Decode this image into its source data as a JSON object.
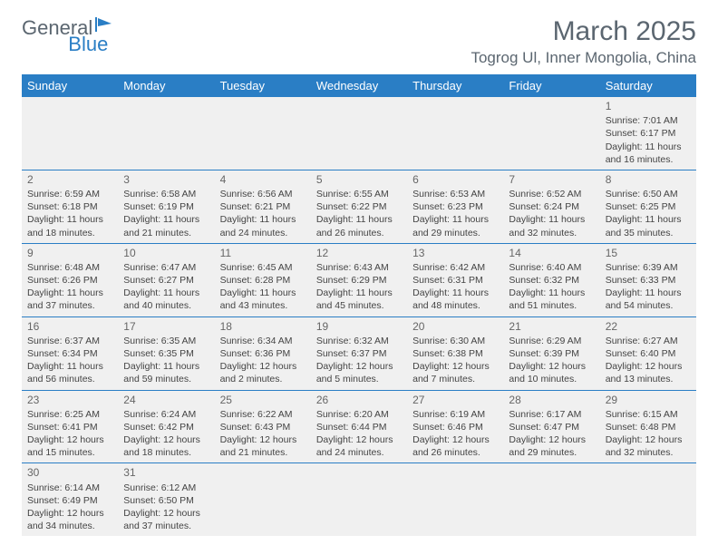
{
  "logo": {
    "text1": "General",
    "text2": "Blue"
  },
  "title": "March 2025",
  "location": "Togrog Ul, Inner Mongolia, China",
  "colors": {
    "header_bg": "#2a7ec5",
    "text": "#5b6670",
    "cell_bg": "#f0f0f0",
    "border": "#2a7ec5"
  },
  "dayNames": [
    "Sunday",
    "Monday",
    "Tuesday",
    "Wednesday",
    "Thursday",
    "Friday",
    "Saturday"
  ],
  "weeks": [
    [
      null,
      null,
      null,
      null,
      null,
      null,
      {
        "n": "1",
        "sr": "Sunrise: 7:01 AM",
        "ss": "Sunset: 6:17 PM",
        "dl": "Daylight: 11 hours and 16 minutes."
      }
    ],
    [
      {
        "n": "2",
        "sr": "Sunrise: 6:59 AM",
        "ss": "Sunset: 6:18 PM",
        "dl": "Daylight: 11 hours and 18 minutes."
      },
      {
        "n": "3",
        "sr": "Sunrise: 6:58 AM",
        "ss": "Sunset: 6:19 PM",
        "dl": "Daylight: 11 hours and 21 minutes."
      },
      {
        "n": "4",
        "sr": "Sunrise: 6:56 AM",
        "ss": "Sunset: 6:21 PM",
        "dl": "Daylight: 11 hours and 24 minutes."
      },
      {
        "n": "5",
        "sr": "Sunrise: 6:55 AM",
        "ss": "Sunset: 6:22 PM",
        "dl": "Daylight: 11 hours and 26 minutes."
      },
      {
        "n": "6",
        "sr": "Sunrise: 6:53 AM",
        "ss": "Sunset: 6:23 PM",
        "dl": "Daylight: 11 hours and 29 minutes."
      },
      {
        "n": "7",
        "sr": "Sunrise: 6:52 AM",
        "ss": "Sunset: 6:24 PM",
        "dl": "Daylight: 11 hours and 32 minutes."
      },
      {
        "n": "8",
        "sr": "Sunrise: 6:50 AM",
        "ss": "Sunset: 6:25 PM",
        "dl": "Daylight: 11 hours and 35 minutes."
      }
    ],
    [
      {
        "n": "9",
        "sr": "Sunrise: 6:48 AM",
        "ss": "Sunset: 6:26 PM",
        "dl": "Daylight: 11 hours and 37 minutes."
      },
      {
        "n": "10",
        "sr": "Sunrise: 6:47 AM",
        "ss": "Sunset: 6:27 PM",
        "dl": "Daylight: 11 hours and 40 minutes."
      },
      {
        "n": "11",
        "sr": "Sunrise: 6:45 AM",
        "ss": "Sunset: 6:28 PM",
        "dl": "Daylight: 11 hours and 43 minutes."
      },
      {
        "n": "12",
        "sr": "Sunrise: 6:43 AM",
        "ss": "Sunset: 6:29 PM",
        "dl": "Daylight: 11 hours and 45 minutes."
      },
      {
        "n": "13",
        "sr": "Sunrise: 6:42 AM",
        "ss": "Sunset: 6:31 PM",
        "dl": "Daylight: 11 hours and 48 minutes."
      },
      {
        "n": "14",
        "sr": "Sunrise: 6:40 AM",
        "ss": "Sunset: 6:32 PM",
        "dl": "Daylight: 11 hours and 51 minutes."
      },
      {
        "n": "15",
        "sr": "Sunrise: 6:39 AM",
        "ss": "Sunset: 6:33 PM",
        "dl": "Daylight: 11 hours and 54 minutes."
      }
    ],
    [
      {
        "n": "16",
        "sr": "Sunrise: 6:37 AM",
        "ss": "Sunset: 6:34 PM",
        "dl": "Daylight: 11 hours and 56 minutes."
      },
      {
        "n": "17",
        "sr": "Sunrise: 6:35 AM",
        "ss": "Sunset: 6:35 PM",
        "dl": "Daylight: 11 hours and 59 minutes."
      },
      {
        "n": "18",
        "sr": "Sunrise: 6:34 AM",
        "ss": "Sunset: 6:36 PM",
        "dl": "Daylight: 12 hours and 2 minutes."
      },
      {
        "n": "19",
        "sr": "Sunrise: 6:32 AM",
        "ss": "Sunset: 6:37 PM",
        "dl": "Daylight: 12 hours and 5 minutes."
      },
      {
        "n": "20",
        "sr": "Sunrise: 6:30 AM",
        "ss": "Sunset: 6:38 PM",
        "dl": "Daylight: 12 hours and 7 minutes."
      },
      {
        "n": "21",
        "sr": "Sunrise: 6:29 AM",
        "ss": "Sunset: 6:39 PM",
        "dl": "Daylight: 12 hours and 10 minutes."
      },
      {
        "n": "22",
        "sr": "Sunrise: 6:27 AM",
        "ss": "Sunset: 6:40 PM",
        "dl": "Daylight: 12 hours and 13 minutes."
      }
    ],
    [
      {
        "n": "23",
        "sr": "Sunrise: 6:25 AM",
        "ss": "Sunset: 6:41 PM",
        "dl": "Daylight: 12 hours and 15 minutes."
      },
      {
        "n": "24",
        "sr": "Sunrise: 6:24 AM",
        "ss": "Sunset: 6:42 PM",
        "dl": "Daylight: 12 hours and 18 minutes."
      },
      {
        "n": "25",
        "sr": "Sunrise: 6:22 AM",
        "ss": "Sunset: 6:43 PM",
        "dl": "Daylight: 12 hours and 21 minutes."
      },
      {
        "n": "26",
        "sr": "Sunrise: 6:20 AM",
        "ss": "Sunset: 6:44 PM",
        "dl": "Daylight: 12 hours and 24 minutes."
      },
      {
        "n": "27",
        "sr": "Sunrise: 6:19 AM",
        "ss": "Sunset: 6:46 PM",
        "dl": "Daylight: 12 hours and 26 minutes."
      },
      {
        "n": "28",
        "sr": "Sunrise: 6:17 AM",
        "ss": "Sunset: 6:47 PM",
        "dl": "Daylight: 12 hours and 29 minutes."
      },
      {
        "n": "29",
        "sr": "Sunrise: 6:15 AM",
        "ss": "Sunset: 6:48 PM",
        "dl": "Daylight: 12 hours and 32 minutes."
      }
    ],
    [
      {
        "n": "30",
        "sr": "Sunrise: 6:14 AM",
        "ss": "Sunset: 6:49 PM",
        "dl": "Daylight: 12 hours and 34 minutes."
      },
      {
        "n": "31",
        "sr": "Sunrise: 6:12 AM",
        "ss": "Sunset: 6:50 PM",
        "dl": "Daylight: 12 hours and 37 minutes."
      },
      null,
      null,
      null,
      null,
      null
    ]
  ]
}
